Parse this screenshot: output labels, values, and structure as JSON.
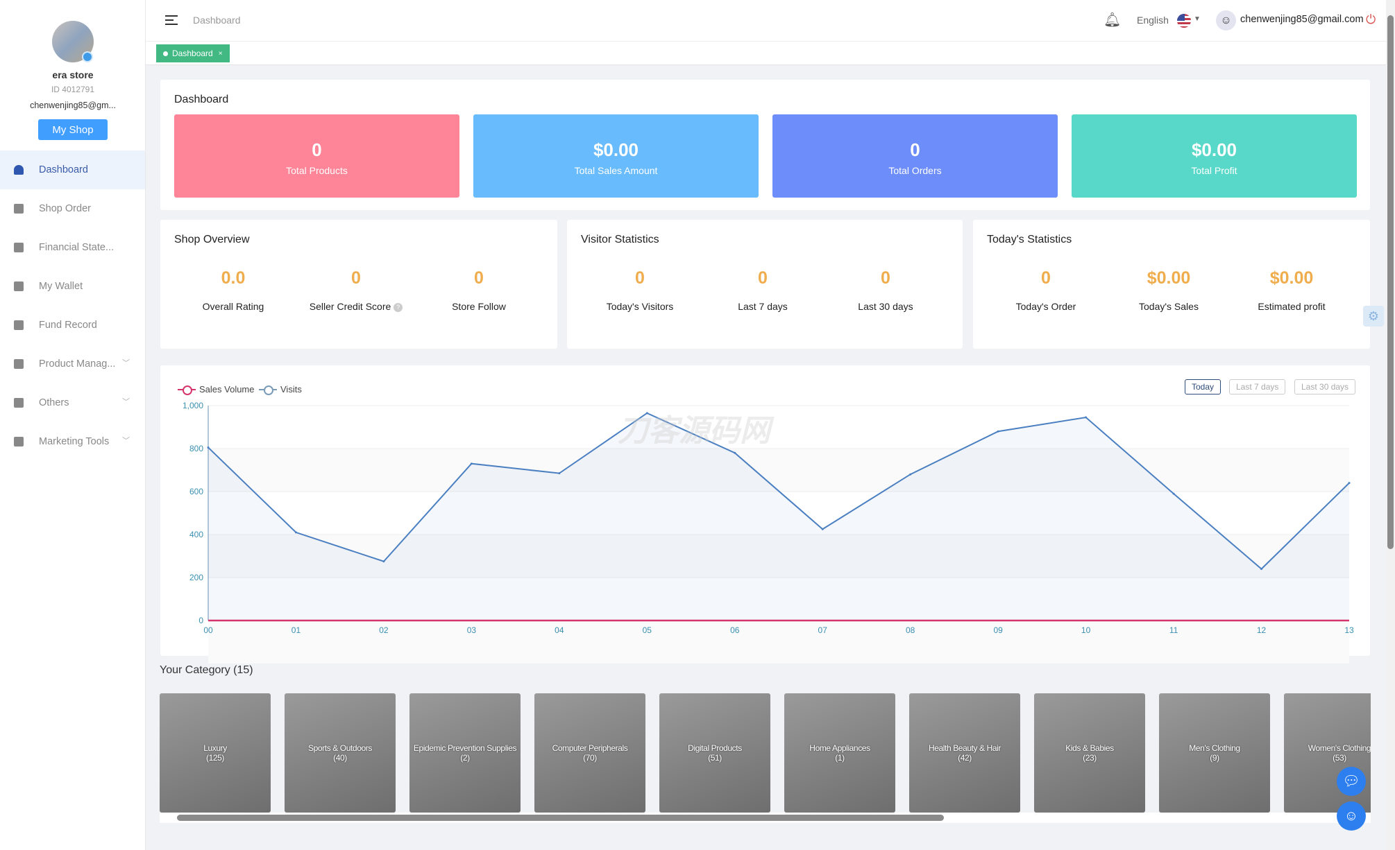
{
  "sidebar": {
    "store_name": "era store",
    "store_id": "ID 4012791",
    "email": "chenwenjing85@gm...",
    "my_shop": "My Shop",
    "items": [
      {
        "label": "Dashboard",
        "icon": "dashboard-icon",
        "active": true
      },
      {
        "label": "Shop Order",
        "icon": "clipboard-icon"
      },
      {
        "label": "Financial State...",
        "icon": "chart-icon"
      },
      {
        "label": "My Wallet",
        "icon": "wallet-icon"
      },
      {
        "label": "Fund Record",
        "icon": "document-icon"
      },
      {
        "label": "Product Manag...",
        "icon": "briefcase-icon",
        "expandable": true
      },
      {
        "label": "Others",
        "icon": "grid-icon",
        "expandable": true
      },
      {
        "label": "Marketing Tools",
        "icon": "bar-chart-icon",
        "expandable": true
      }
    ]
  },
  "header": {
    "breadcrumb": "Dashboard",
    "language": "English",
    "user_email": "chenwenjing85@gmail.com"
  },
  "tabs": [
    {
      "label": "Dashboard",
      "close": "×"
    }
  ],
  "dashboard": {
    "title": "Dashboard",
    "stats": [
      {
        "value": "0",
        "label": "Total Products",
        "color": "#fe8497"
      },
      {
        "value": "$0.00",
        "label": "Total Sales Amount",
        "color": "#68bbfd"
      },
      {
        "value": "0",
        "label": "Total Orders",
        "color": "#6c8dfa"
      },
      {
        "value": "$0.00",
        "label": "Total Profit",
        "color": "#58d8c8"
      }
    ]
  },
  "panels": [
    {
      "title": "Shop Overview",
      "items": [
        {
          "value": "0.0",
          "label": "Overall Rating"
        },
        {
          "value": "0",
          "label": "Seller Credit Score",
          "help": "?"
        },
        {
          "value": "0",
          "label": "Store Follow"
        }
      ]
    },
    {
      "title": "Visitor Statistics",
      "items": [
        {
          "value": "0",
          "label": "Today's Visitors"
        },
        {
          "value": "0",
          "label": "Last 7 days"
        },
        {
          "value": "0",
          "label": "Last 30 days"
        }
      ]
    },
    {
      "title": "Today's Statistics",
      "items": [
        {
          "value": "0",
          "label": "Today's Order"
        },
        {
          "value": "$0.00",
          "label": "Today's Sales"
        },
        {
          "value": "$0.00",
          "label": "Estimated profit"
        }
      ]
    }
  ],
  "range_buttons": [
    "Today",
    "Last 7 days",
    "Last 30 days"
  ],
  "watermark": "刀客源码网",
  "chart_data": {
    "type": "line",
    "x": [
      "00",
      "01",
      "02",
      "03",
      "04",
      "05",
      "06",
      "07",
      "08",
      "09",
      "10",
      "11",
      "12",
      "13"
    ],
    "ylim": [
      0,
      1000
    ],
    "yticks": [
      "0",
      "200",
      "400",
      "600",
      "800",
      "1,000"
    ],
    "legend_position": "top-left",
    "series": [
      {
        "name": "Sales Volume",
        "color": "#d6336c",
        "values": [
          0,
          0,
          0,
          0,
          0,
          0,
          0,
          0,
          0,
          0,
          0,
          0,
          0,
          0
        ]
      },
      {
        "name": "Visits",
        "color": "#4a7fc1",
        "values": [
          805,
          410,
          275,
          730,
          685,
          965,
          780,
          425,
          680,
          880,
          945,
          590,
          240,
          640
        ]
      }
    ]
  },
  "categories": {
    "title": "Your Category  (15)",
    "items": [
      {
        "name": "Luxury",
        "count": "(125)"
      },
      {
        "name": "Sports & Outdoors",
        "count": "(40)"
      },
      {
        "name": "Epidemic Prevention Supplies",
        "count": "(2)"
      },
      {
        "name": "Computer Peripherals",
        "count": "(70)"
      },
      {
        "name": "Digital Products",
        "count": "(51)"
      },
      {
        "name": "Home Appliances",
        "count": "(1)"
      },
      {
        "name": "Health Beauty & Hair",
        "count": "(42)"
      },
      {
        "name": "Kids & Babies",
        "count": "(23)"
      },
      {
        "name": "Men's Clothing",
        "count": "(9)"
      },
      {
        "name": "Women's Clothing",
        "count": "(53)"
      }
    ]
  }
}
